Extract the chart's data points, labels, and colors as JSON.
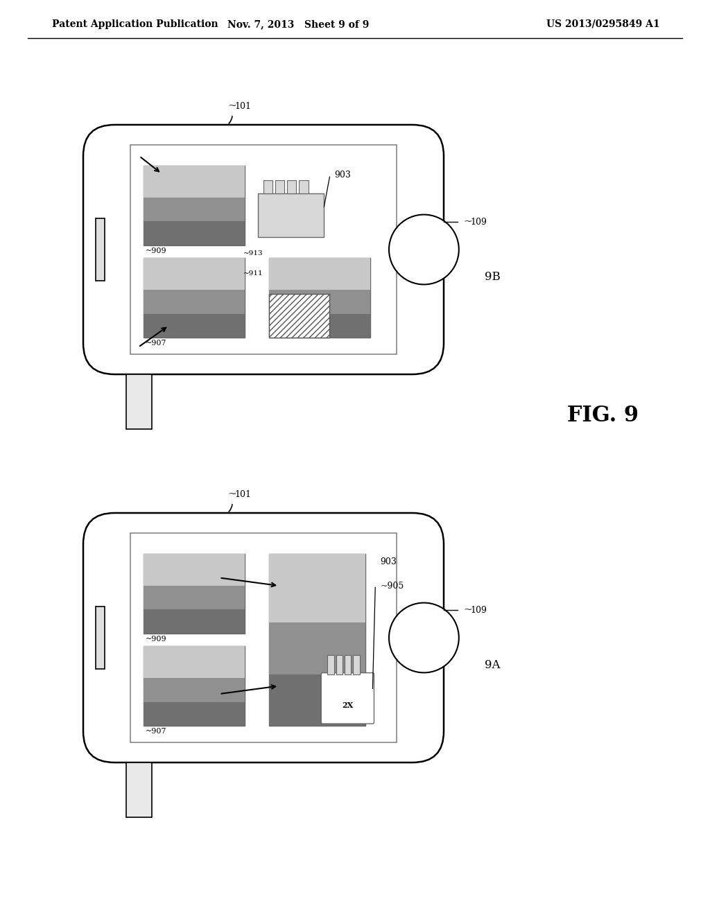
{
  "bg_color": "#ffffff",
  "lc": "#000000",
  "header_left": "Patent Application Publication",
  "header_mid": "Nov. 7, 2013   Sheet 9 of 9",
  "header_right": "US 2013/0295849 A1",
  "fig_label": "FIG. 9",
  "img_gray1": "#a8a8a8",
  "img_gray2": "#909090",
  "img_dark": "#686868",
  "img_darker": "#505050"
}
